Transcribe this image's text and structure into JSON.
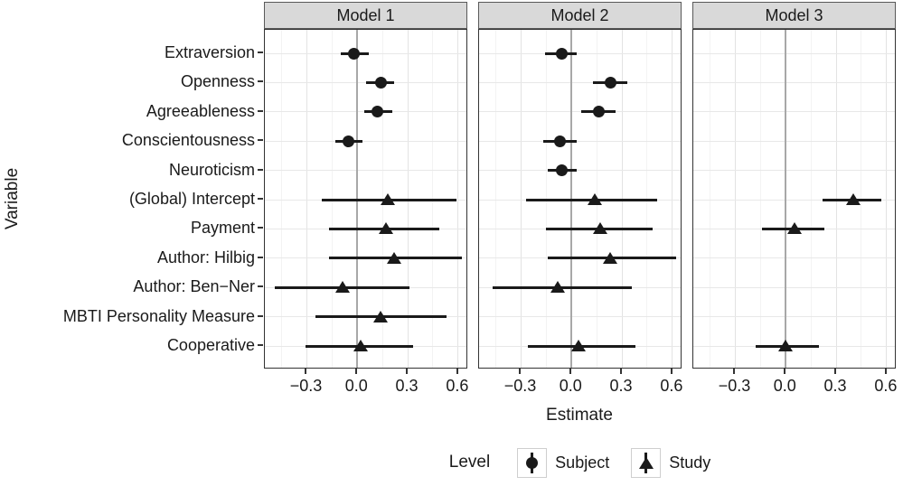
{
  "chart_data": {
    "type": "scatter",
    "subtype": "faceted forest plot with error bars",
    "title": "",
    "xlabel": "Estimate",
    "ylabel": "Variable",
    "facets": [
      "Model 1",
      "Model 2",
      "Model 3"
    ],
    "categories": [
      "Extraversion",
      "Openness",
      "Agreeableness",
      "Conscientousness",
      "Neuroticism",
      "(Global) Intercept",
      "Payment",
      "Author: Hilbig",
      "Author: Ben−Ner",
      "MBTI Personality Measure",
      "Cooperative"
    ],
    "xlim": [
      -0.55,
      0.66
    ],
    "x_ticks": [
      -0.3,
      0.0,
      0.3,
      0.6
    ],
    "x_tick_labels": [
      "−0.3",
      "0.0",
      "0.3",
      "0.6"
    ],
    "x_minor_ticks": [
      -0.45,
      -0.15,
      0.15,
      0.45
    ],
    "zero_line": 0.0,
    "grid": true,
    "legend": {
      "title": "Level",
      "position": "bottom",
      "entries": [
        {
          "label": "Subject",
          "shape": "circle"
        },
        {
          "label": "Study",
          "shape": "triangle"
        }
      ]
    },
    "style": {
      "marker_color": "#1a1a1a",
      "zero_line_color": "#a8a8a8",
      "strip_background": "#d9d9d9"
    },
    "series": [
      {
        "facet": "Model 1",
        "points": [
          {
            "variable": "Extraversion",
            "level": "Subject",
            "estimate": -0.02,
            "ci_low": -0.1,
            "ci_high": 0.07
          },
          {
            "variable": "Openness",
            "level": "Subject",
            "estimate": 0.14,
            "ci_low": 0.05,
            "ci_high": 0.22
          },
          {
            "variable": "Agreeableness",
            "level": "Subject",
            "estimate": 0.12,
            "ci_low": 0.04,
            "ci_high": 0.21
          },
          {
            "variable": "Conscientousness",
            "level": "Subject",
            "estimate": -0.05,
            "ci_low": -0.13,
            "ci_high": 0.03
          },
          {
            "variable": "(Global) Intercept",
            "level": "Study",
            "estimate": 0.18,
            "ci_low": -0.21,
            "ci_high": 0.59
          },
          {
            "variable": "Payment",
            "level": "Study",
            "estimate": 0.17,
            "ci_low": -0.17,
            "ci_high": 0.49
          },
          {
            "variable": "Author: Hilbig",
            "level": "Study",
            "estimate": 0.22,
            "ci_low": -0.17,
            "ci_high": 0.62
          },
          {
            "variable": "Author: Ben−Ner",
            "level": "Study",
            "estimate": -0.09,
            "ci_low": -0.49,
            "ci_high": 0.31
          },
          {
            "variable": "MBTI Personality Measure",
            "level": "Study",
            "estimate": 0.14,
            "ci_low": -0.25,
            "ci_high": 0.53
          },
          {
            "variable": "Cooperative",
            "level": "Study",
            "estimate": 0.02,
            "ci_low": -0.31,
            "ci_high": 0.33
          }
        ]
      },
      {
        "facet": "Model 2",
        "points": [
          {
            "variable": "Extraversion",
            "level": "Subject",
            "estimate": -0.06,
            "ci_low": -0.16,
            "ci_high": 0.03
          },
          {
            "variable": "Openness",
            "level": "Subject",
            "estimate": 0.23,
            "ci_low": 0.13,
            "ci_high": 0.33
          },
          {
            "variable": "Agreeableness",
            "level": "Subject",
            "estimate": 0.16,
            "ci_low": 0.06,
            "ci_high": 0.26
          },
          {
            "variable": "Conscientousness",
            "level": "Subject",
            "estimate": -0.07,
            "ci_low": -0.17,
            "ci_high": 0.03
          },
          {
            "variable": "Neuroticism",
            "level": "Subject",
            "estimate": -0.06,
            "ci_low": -0.14,
            "ci_high": 0.03
          },
          {
            "variable": "(Global) Intercept",
            "level": "Study",
            "estimate": 0.14,
            "ci_low": -0.27,
            "ci_high": 0.51
          },
          {
            "variable": "Payment",
            "level": "Study",
            "estimate": 0.17,
            "ci_low": -0.15,
            "ci_high": 0.48
          },
          {
            "variable": "Author: Hilbig",
            "level": "Study",
            "estimate": 0.23,
            "ci_low": -0.14,
            "ci_high": 0.62
          },
          {
            "variable": "Author: Ben−Ner",
            "level": "Study",
            "estimate": -0.08,
            "ci_low": -0.47,
            "ci_high": 0.36
          },
          {
            "variable": "Cooperative",
            "level": "Study",
            "estimate": 0.04,
            "ci_low": -0.26,
            "ci_high": 0.38
          }
        ]
      },
      {
        "facet": "Model 3",
        "points": [
          {
            "variable": "(Global) Intercept",
            "level": "Study",
            "estimate": 0.4,
            "ci_low": 0.22,
            "ci_high": 0.57
          },
          {
            "variable": "Payment",
            "level": "Study",
            "estimate": 0.05,
            "ci_low": -0.14,
            "ci_high": 0.23
          },
          {
            "variable": "Cooperative",
            "level": "Study",
            "estimate": 0.0,
            "ci_low": -0.18,
            "ci_high": 0.2
          }
        ]
      }
    ]
  }
}
